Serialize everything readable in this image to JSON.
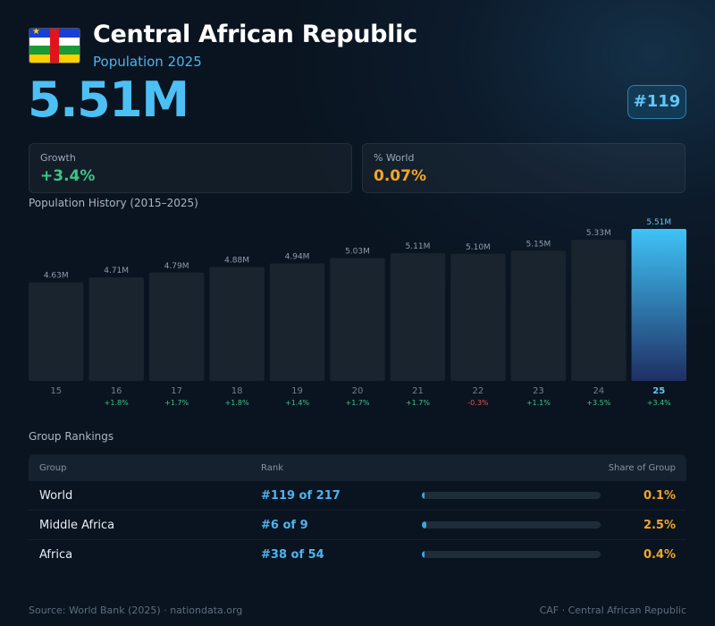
{
  "header": {
    "flag_icon": "central-african-republic-flag",
    "title": "Central African Republic",
    "subtitle": "Population 2025",
    "population": "5.51M",
    "rank": "#119"
  },
  "stats": {
    "growth_label": "Growth",
    "growth_value": "+3.4%",
    "world_label": "% World",
    "world_value": "0.07%"
  },
  "colors": {
    "accent": "#4cc0f5",
    "positive": "#3ec488",
    "negative": "#e05555",
    "share": "#f5a623"
  },
  "history": {
    "title": "Population History (2015–2025)"
  },
  "chart_data": {
    "type": "bar",
    "categories": [
      "15",
      "16",
      "17",
      "18",
      "19",
      "20",
      "21",
      "22",
      "23",
      "24",
      "25"
    ],
    "values": [
      4.63,
      4.71,
      4.79,
      4.88,
      4.94,
      5.03,
      5.11,
      5.1,
      5.15,
      5.33,
      5.51
    ],
    "value_labels": [
      "4.63M",
      "4.71M",
      "4.79M",
      "4.88M",
      "4.94M",
      "5.03M",
      "5.11M",
      "5.10M",
      "5.15M",
      "5.33M",
      "5.51M"
    ],
    "growth_labels": [
      "",
      "+1.8%",
      "+1.7%",
      "+1.8%",
      "+1.4%",
      "+1.7%",
      "+1.7%",
      "-0.3%",
      "+1.1%",
      "+3.5%",
      "+3.4%"
    ],
    "highlight_category": "25",
    "grid": false
  },
  "rankings": {
    "title": "Group Rankings",
    "columns": [
      "Group",
      "Rank",
      "Share of Group"
    ],
    "rows": [
      {
        "group": "World",
        "rank": "#119 of 217",
        "share": "0.1%",
        "share_value": 0.1
      },
      {
        "group": "Middle Africa",
        "rank": "#6 of 9",
        "share": "2.5%",
        "share_value": 2.5
      },
      {
        "group": "Africa",
        "rank": "#38 of 54",
        "share": "0.4%",
        "share_value": 0.4
      }
    ]
  },
  "footer": {
    "source": "Source: World Bank (2025) · nationdata.org",
    "code": "CAF · Central African Republic"
  }
}
